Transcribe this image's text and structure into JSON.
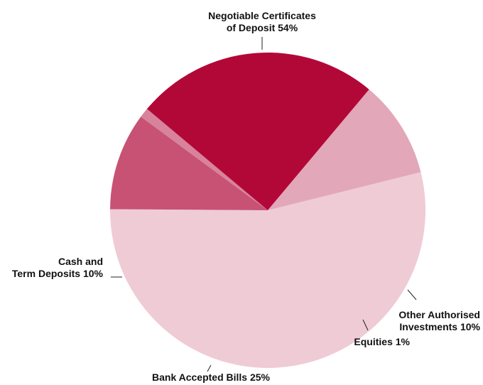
{
  "chart_data": {
    "type": "pie",
    "title": "",
    "slices": [
      {
        "name": "Negotiable Certificates of Deposit",
        "value": 54,
        "label_lines": [
          "Negotiable Certificates",
          "of Deposit 54%"
        ],
        "color": "#efcbd6"
      },
      {
        "name": "Other Authorised Investments",
        "value": 10,
        "label_lines": [
          "Other Authorised",
          "Investments 10%"
        ],
        "color": "#c85274"
      },
      {
        "name": "Equities",
        "value": 1,
        "label_lines": [
          "Equities 1%"
        ],
        "color": "#d8829b"
      },
      {
        "name": "Bank Accepted Bills",
        "value": 25,
        "label_lines": [
          "Bank Accepted Bills 25%"
        ],
        "color": "#b20838"
      },
      {
        "name": "Cash and Term Deposits",
        "value": 10,
        "label_lines": [
          "Cash and",
          "Term Deposits 10%"
        ],
        "color": "#e2a7b8"
      }
    ]
  }
}
